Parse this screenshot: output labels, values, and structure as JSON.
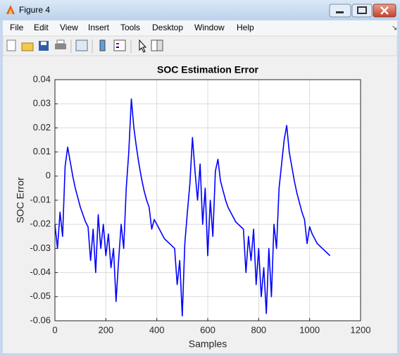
{
  "window": {
    "title": "Figure 4"
  },
  "menu": [
    "File",
    "Edit",
    "View",
    "Insert",
    "Tools",
    "Desktop",
    "Window",
    "Help"
  ],
  "chart_data": {
    "type": "line",
    "title": "SOC Estimation Error",
    "x_label": "Samples",
    "y_label": "SOC Error",
    "xlim": [
      0,
      1200
    ],
    "ylim": [
      -0.06,
      0.04
    ],
    "xticks": [
      0,
      200,
      400,
      600,
      800,
      1000,
      1200
    ],
    "yticks": [
      -0.06,
      -0.05,
      -0.04,
      -0.03,
      -0.02,
      -0.01,
      0,
      0.01,
      0.02,
      0.03,
      0.04
    ],
    "grid": true,
    "x": [
      0,
      10,
      20,
      30,
      40,
      50,
      60,
      70,
      80,
      90,
      100,
      110,
      120,
      130,
      140,
      150,
      160,
      170,
      180,
      190,
      200,
      210,
      220,
      230,
      240,
      250,
      260,
      270,
      280,
      290,
      300,
      310,
      320,
      330,
      340,
      350,
      360,
      370,
      380,
      390,
      400,
      410,
      420,
      430,
      440,
      450,
      460,
      470,
      480,
      490,
      500,
      510,
      520,
      530,
      540,
      550,
      560,
      570,
      580,
      590,
      600,
      610,
      620,
      630,
      640,
      650,
      660,
      670,
      680,
      690,
      700,
      710,
      720,
      730,
      740,
      750,
      760,
      770,
      780,
      790,
      800,
      810,
      820,
      830,
      840,
      850,
      860,
      870,
      880,
      890,
      900,
      910,
      920,
      930,
      940,
      950,
      960,
      970,
      980,
      990,
      1000,
      1010,
      1020,
      1030,
      1040,
      1050,
      1060,
      1070,
      1080
    ],
    "series": [
      {
        "name": "SOC Error",
        "color": "#0000ff",
        "values": [
          -0.02,
          -0.03,
          -0.015,
          -0.025,
          0.004,
          0.012,
          0.006,
          0.0,
          -0.005,
          -0.009,
          -0.013,
          -0.016,
          -0.019,
          -0.021,
          -0.035,
          -0.022,
          -0.04,
          -0.016,
          -0.03,
          -0.02,
          -0.033,
          -0.024,
          -0.038,
          -0.03,
          -0.052,
          -0.035,
          -0.02,
          -0.03,
          -0.005,
          0.01,
          0.032,
          0.02,
          0.012,
          0.005,
          -0.001,
          -0.006,
          -0.01,
          -0.013,
          -0.022,
          -0.018,
          -0.02,
          -0.022,
          -0.024,
          -0.026,
          -0.027,
          -0.028,
          -0.029,
          -0.03,
          -0.045,
          -0.035,
          -0.058,
          -0.028,
          -0.015,
          -0.003,
          0.016,
          0.002,
          -0.01,
          0.005,
          -0.02,
          -0.005,
          -0.033,
          -0.01,
          -0.025,
          0.002,
          0.007,
          -0.002,
          -0.006,
          -0.01,
          -0.013,
          -0.015,
          -0.017,
          -0.019,
          -0.02,
          -0.021,
          -0.022,
          -0.04,
          -0.025,
          -0.035,
          -0.022,
          -0.045,
          -0.03,
          -0.05,
          -0.038,
          -0.057,
          -0.03,
          -0.05,
          -0.02,
          -0.03,
          -0.005,
          0.005,
          0.015,
          0.021,
          0.01,
          0.004,
          -0.002,
          -0.007,
          -0.011,
          -0.015,
          -0.018,
          -0.028,
          -0.021,
          -0.024,
          -0.026,
          -0.028,
          -0.029,
          -0.03,
          -0.031,
          -0.032,
          -0.033
        ]
      }
    ]
  }
}
